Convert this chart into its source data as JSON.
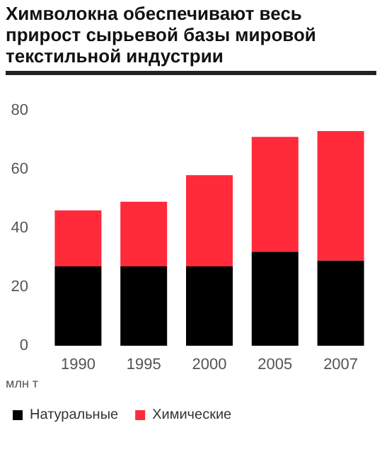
{
  "chart_data": {
    "type": "bar",
    "title": "Химволокна обеспечивают весь прирост сырьевой базы мировой текстильной индустрии",
    "ylabel": "млн т",
    "categories": [
      "1990",
      "1995",
      "2000",
      "2005",
      "2007"
    ],
    "series": [
      {
        "name": "Натуральные",
        "color": "#000000",
        "values": [
          27,
          27,
          27,
          32,
          29
        ]
      },
      {
        "name": "Химические",
        "color": "#ff2a3a",
        "values": [
          19,
          22,
          31,
          39,
          44
        ]
      }
    ],
    "stacked": true,
    "ylim": [
      0,
      80
    ],
    "yticks": [
      0,
      20,
      40,
      60,
      80
    ],
    "grid": false,
    "legend": "bottom left"
  }
}
